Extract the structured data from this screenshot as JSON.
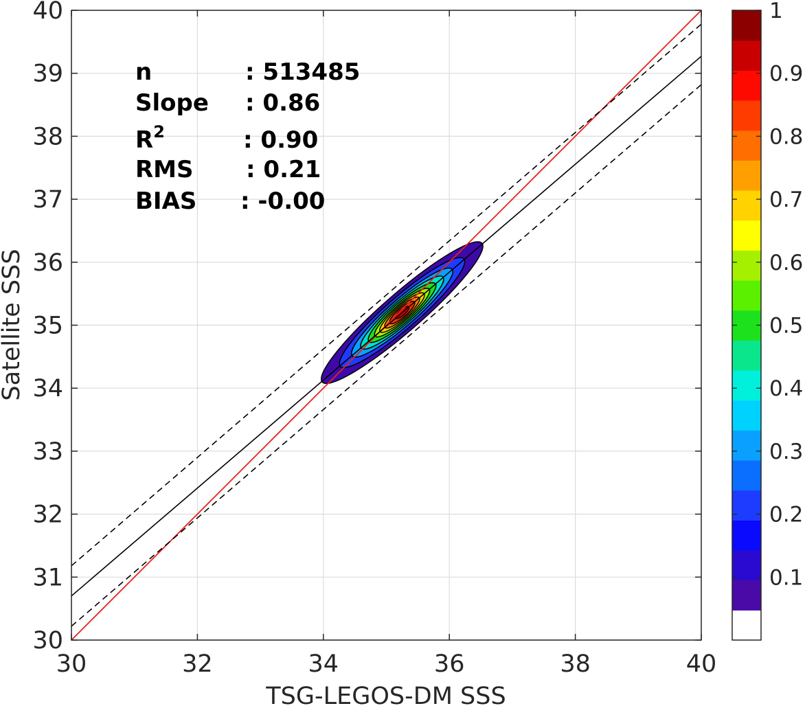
{
  "chart_data": {
    "type": "scatter",
    "subtype": "density contour scatter",
    "xlabel": "TSG-LEGOS-DM SSS",
    "ylabel": "Satellite SSS",
    "xlim": [
      30,
      40
    ],
    "ylim": [
      30,
      40
    ],
    "xticks": [
      "30",
      "32",
      "34",
      "36",
      "38",
      "40"
    ],
    "yticks": [
      "30",
      "31",
      "32",
      "33",
      "34",
      "35",
      "36",
      "37",
      "38",
      "39",
      "40"
    ],
    "grid": true,
    "stats": [
      {
        "label": "n",
        "value": ": 513485"
      },
      {
        "label": "Slope",
        "value": ": 0.86"
      },
      {
        "label": "R",
        "superscript": "2",
        "value": ": 0.90"
      },
      {
        "label": "RMS",
        "value": ": 0.21"
      },
      {
        "label": "BIAS",
        "value": ": -0.00"
      }
    ],
    "lines": [
      {
        "role": "one-to-one",
        "color": "#e8201e",
        "style": "solid",
        "x": [
          30,
          40
        ],
        "y": [
          30,
          40
        ]
      },
      {
        "role": "regression",
        "color": "#000000",
        "style": "solid",
        "x": [
          30,
          40
        ],
        "y": [
          30.7,
          39.27
        ]
      },
      {
        "role": "regression-upper",
        "color": "#000000",
        "style": "dashed",
        "x": [
          30,
          40
        ],
        "y": [
          31.18,
          39.78
        ]
      },
      {
        "role": "regression-lower",
        "color": "#000000",
        "style": "dashed",
        "x": [
          30,
          40
        ],
        "y": [
          30.22,
          38.82
        ]
      }
    ],
    "density": {
      "center": [
        35.25,
        35.2
      ],
      "orientation_deg": 41,
      "levels": [
        {
          "level": 0.05,
          "color": "#3d0aa8",
          "semi_axes": [
            1.68,
            0.3
          ]
        },
        {
          "level": 0.15,
          "color": "#1e3cff",
          "semi_axes": [
            1.3,
            0.25
          ]
        },
        {
          "level": 0.25,
          "color": "#0aa0ff",
          "semi_axes": [
            1.05,
            0.21
          ]
        },
        {
          "level": 0.35,
          "color": "#00e1c8",
          "semi_axes": [
            0.86,
            0.18
          ]
        },
        {
          "level": 0.45,
          "color": "#1ee11e",
          "semi_axes": [
            0.7,
            0.155
          ]
        },
        {
          "level": 0.55,
          "color": "#a5f000",
          "semi_axes": [
            0.57,
            0.13
          ]
        },
        {
          "level": 0.65,
          "color": "#ffd200",
          "semi_axes": [
            0.46,
            0.11
          ]
        },
        {
          "level": 0.75,
          "color": "#ff8200",
          "semi_axes": [
            0.36,
            0.09
          ]
        },
        {
          "level": 0.85,
          "color": "#ff3200",
          "semi_axes": [
            0.26,
            0.07
          ]
        },
        {
          "level": 0.95,
          "color": "#cc0000",
          "semi_axes": [
            0.14,
            0.045
          ]
        }
      ]
    },
    "colorbar": {
      "ticks": [
        "0.1",
        "0.2",
        "0.3",
        "0.4",
        "0.5",
        "0.6",
        "0.7",
        "0.8",
        "0.9",
        "1"
      ],
      "tick_values": [
        0.1,
        0.2,
        0.3,
        0.4,
        0.5,
        0.6,
        0.7,
        0.8,
        0.9,
        1.0
      ],
      "range": [
        0,
        1
      ],
      "colors": [
        "#ffffff",
        "#4a0aa8",
        "#2a0ad0",
        "#0a0aff",
        "#1e3cff",
        "#0a6eff",
        "#0aa0ff",
        "#00d2ff",
        "#00f0dc",
        "#0ae68c",
        "#1ee11e",
        "#5af000",
        "#a5f000",
        "#ffff00",
        "#ffd200",
        "#ffa000",
        "#ff6e00",
        "#ff3c00",
        "#ff0a00",
        "#c80000",
        "#8c0000"
      ]
    }
  }
}
